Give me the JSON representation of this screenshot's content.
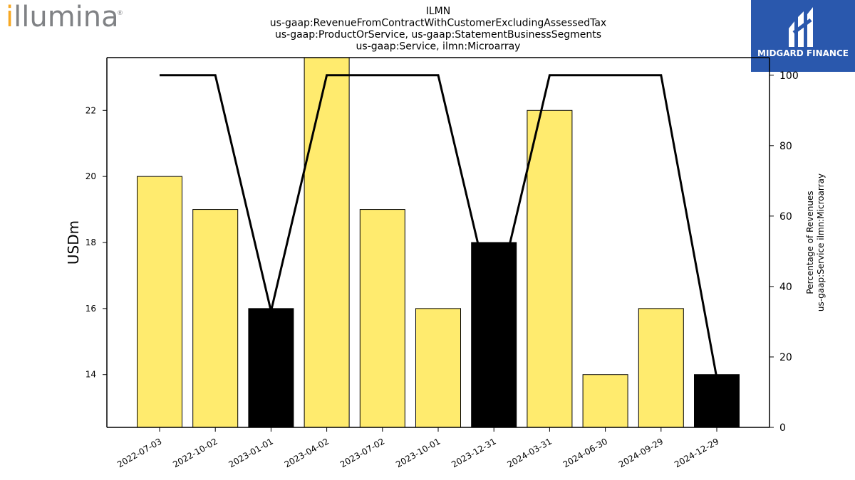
{
  "logos": {
    "left_text": "illumina",
    "left_mark": "®",
    "right_text": "MIDGARD FINANCE"
  },
  "chart_data": {
    "type": "bar",
    "title": [
      "ILMN",
      "us-gaap:RevenueFromContractWithCustomerExcludingAssessedTax",
      "us-gaap:ProductOrService, us-gaap:StatementBusinessSegments",
      "us-gaap:Service, ilmn:Microarray"
    ],
    "categories": [
      "2022-07-03",
      "2022-10-02",
      "2023-01-01",
      "2023-04-02",
      "2023-07-02",
      "2023-10-01",
      "2023-12-31",
      "2024-03-31",
      "2024-06-30",
      "2024-09-29",
      "2024-12-29"
    ],
    "series": [
      {
        "values": [
          20,
          19,
          16,
          24,
          19,
          16,
          18,
          22,
          14,
          16,
          14
        ],
        "colors": [
          "#ffeb6e",
          "#ffeb6e",
          "#000000",
          "#ffeb6e",
          "#ffeb6e",
          "#ffeb6e",
          "#000000",
          "#ffeb6e",
          "#ffeb6e",
          "#ffeb6e",
          "#000000"
        ]
      },
      {
        "axis": "right",
        "values": [
          100,
          100,
          33,
          100,
          100,
          100,
          33,
          100,
          100,
          100,
          14
        ],
        "color": "#000000"
      }
    ],
    "ylabel": "USDm",
    "ylim": [
      12.4,
      23.6
    ],
    "yticks": [
      14,
      16,
      18,
      20,
      22
    ],
    "y2label": [
      "Percentage of Revenues",
      "us-gaap:Service ilmn:Microarray"
    ],
    "y2lim": [
      0,
      105
    ],
    "y2ticks": [
      0,
      20,
      40,
      60,
      80,
      100
    ],
    "grid": false,
    "legend": "none"
  }
}
